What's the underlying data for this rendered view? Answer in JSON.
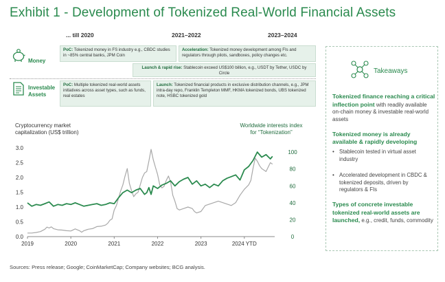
{
  "title": "Exhibit 1 - Development of Tokenized Real-World Financial Assets",
  "periods": [
    "... till 2020",
    "2021–2022",
    "2023–2024"
  ],
  "rows": {
    "money": {
      "label": "Money",
      "icon": "piggy-bank-icon"
    },
    "investable": {
      "label_line1": "Investable",
      "label_line2": "Assets",
      "icon": "document-icon"
    }
  },
  "boxes": {
    "poc_money": {
      "head": "PoC:",
      "text": " Tokenized money in FS industry e.g., CBDC studies in ~85% central banks, JPM Coin"
    },
    "acceleration": {
      "head": "Acceleration:",
      "text": " Tokenized money development among FIs and regulators through pilots, sandboxes, policy changes etc."
    },
    "launch_rise": {
      "head": "Launch & rapid rise:",
      "text": " Stablecoin exceed US$100 billion, e.g., USDT by Tether, USDC by Circle"
    },
    "poc_assets": {
      "head": "PoC:",
      "text": " Multiple tokenized real-world assets initiatives across asset types, such as funds, real estates"
    },
    "launch_assets": {
      "head": "Launch:",
      "text": " Tokenized financial products in exclusive distribution channels, e.g., JPM intra-day repo, Franklin Templeton MMF, HKMA tokenized bonds, UBS tokenized note, HSBC tokenized gold"
    }
  },
  "takeaways": {
    "heading": "Takeaways",
    "icon": "network-icon",
    "p1_bold": "Tokenized finance reaching a critical inflection point",
    "p1_rest": " with readily available on-chain money & investable real-world assets",
    "p2_bold": "Tokenized money is already available & rapidly developing",
    "bullets": [
      "Stablecoin tested in virtual asset industry",
      "Accelerated development in CBDC & tokenized deposits, driven by regulators & FIs"
    ],
    "p3_bold": "Types of concrete investable tokenized real-world assets are launched,",
    "p3_rest": " e.g., credit, funds, commodity"
  },
  "sources": "Sources: Press release; Google; CoinMarketCap; Company websites; BCG analysis.",
  "colors": {
    "green": "#2a8a4e",
    "grey_line": "#a8a8a8",
    "box_fill": "#e6f1ea"
  },
  "chart_data": {
    "type": "line",
    "left_axis_label": [
      "Cryptocurrency market",
      "capitalization (US$ trillion)"
    ],
    "right_axis_label": [
      "Worldwide interests index",
      "for “Tokenization”"
    ],
    "x_ticks": [
      "2019",
      "2020",
      "2021",
      "2022",
      "2023",
      "2024 YTD"
    ],
    "x_range": [
      2019.0,
      2024.7
    ],
    "ylim_left": [
      0,
      3.0
    ],
    "ylim_right": [
      0,
      105
    ],
    "y_left_ticks": [
      "0.0",
      "0.5",
      "1.0",
      "1.5",
      "2.0",
      "2.5",
      "3.0"
    ],
    "y_right_ticks": [
      "0",
      "20",
      "40",
      "60",
      "80",
      "100"
    ],
    "series": [
      {
        "axis": "left",
        "color": "#a8a8a8",
        "x": [
          2019.0,
          2019.1,
          2019.2,
          2019.3,
          2019.4,
          2019.45,
          2019.5,
          2019.55,
          2019.6,
          2019.7,
          2019.8,
          2019.9,
          2020.0,
          2020.1,
          2020.2,
          2020.25,
          2020.3,
          2020.4,
          2020.5,
          2020.6,
          2020.7,
          2020.8,
          2020.85,
          2020.9,
          2020.95,
          2021.0,
          2021.05,
          2021.1,
          2021.15,
          2021.2,
          2021.25,
          2021.3,
          2021.35,
          2021.4,
          2021.45,
          2021.5,
          2021.55,
          2021.6,
          2021.65,
          2021.7,
          2021.75,
          2021.8,
          2021.85,
          2021.9,
          2021.95,
          2022.0,
          2022.05,
          2022.1,
          2022.15,
          2022.2,
          2022.25,
          2022.3,
          2022.35,
          2022.4,
          2022.45,
          2022.5,
          2022.6,
          2022.7,
          2022.8,
          2022.85,
          2022.9,
          2023.0,
          2023.1,
          2023.2,
          2023.3,
          2023.4,
          2023.5,
          2023.6,
          2023.7,
          2023.8,
          2023.9,
          2024.0,
          2024.1,
          2024.15,
          2024.2,
          2024.25,
          2024.3,
          2024.35,
          2024.4,
          2024.5,
          2024.55,
          2024.6,
          2024.65
        ],
        "y": [
          0.12,
          0.12,
          0.14,
          0.17,
          0.25,
          0.32,
          0.29,
          0.33,
          0.27,
          0.23,
          0.22,
          0.2,
          0.19,
          0.26,
          0.2,
          0.15,
          0.2,
          0.25,
          0.27,
          0.34,
          0.35,
          0.39,
          0.45,
          0.55,
          0.6,
          0.9,
          1.05,
          1.3,
          1.55,
          1.75,
          2.05,
          2.3,
          1.8,
          1.55,
          1.35,
          1.45,
          1.5,
          1.75,
          2.0,
          2.15,
          2.2,
          2.55,
          2.95,
          2.6,
          2.35,
          2.1,
          1.75,
          1.65,
          1.7,
          1.9,
          2.05,
          1.85,
          1.4,
          1.2,
          0.95,
          0.9,
          0.95,
          1.0,
          0.95,
          0.85,
          0.8,
          0.85,
          1.05,
          1.1,
          1.15,
          1.2,
          1.15,
          1.1,
          1.05,
          1.15,
          1.4,
          1.6,
          1.75,
          1.9,
          2.3,
          2.65,
          2.55,
          2.4,
          2.3,
          2.2,
          2.35,
          2.5,
          2.45
        ]
      },
      {
        "axis": "right",
        "color": "#2a8a4e",
        "x": [
          2019.0,
          2019.1,
          2019.2,
          2019.3,
          2019.4,
          2019.5,
          2019.6,
          2019.7,
          2019.8,
          2019.9,
          2020.0,
          2020.1,
          2020.2,
          2020.3,
          2020.4,
          2020.5,
          2020.6,
          2020.7,
          2020.8,
          2020.9,
          2021.0,
          2021.1,
          2021.2,
          2021.3,
          2021.4,
          2021.5,
          2021.6,
          2021.7,
          2021.75,
          2021.8,
          2021.85,
          2021.9,
          2022.0,
          2022.1,
          2022.2,
          2022.3,
          2022.4,
          2022.5,
          2022.6,
          2022.7,
          2022.8,
          2022.9,
          2023.0,
          2023.1,
          2023.2,
          2023.3,
          2023.4,
          2023.5,
          2023.6,
          2023.7,
          2023.8,
          2023.9,
          2024.0,
          2024.1,
          2024.2,
          2024.3,
          2024.4,
          2024.5,
          2024.6,
          2024.65
        ],
        "y": [
          40,
          36,
          38,
          37,
          39,
          41,
          36,
          38,
          37,
          39,
          38,
          40,
          38,
          36,
          37,
          38,
          39,
          37,
          38,
          40,
          39,
          46,
          52,
          55,
          52,
          55,
          57,
          50,
          52,
          58,
          50,
          60,
          57,
          61,
          63,
          66,
          60,
          65,
          68,
          70,
          62,
          66,
          60,
          62,
          58,
          62,
          60,
          66,
          69,
          71,
          73,
          67,
          79,
          83,
          90,
          100,
          94,
          97,
          92,
          95
        ]
      }
    ]
  }
}
